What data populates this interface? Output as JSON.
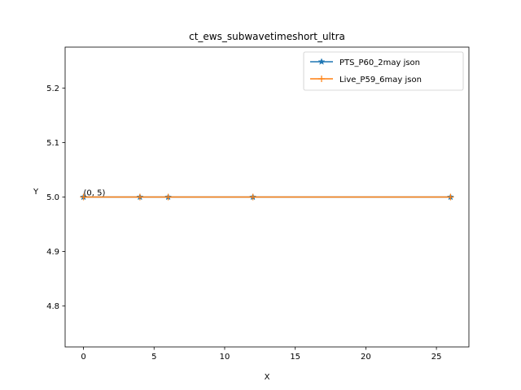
{
  "chart_data": {
    "type": "line",
    "title": "ct_ews_subwavetimeshort_ultra",
    "xlabel": "X",
    "ylabel": "Y",
    "xlim": [
      -1.3,
      27.3
    ],
    "ylim": [
      4.725,
      5.275
    ],
    "xticks": [
      0,
      5,
      10,
      15,
      20,
      25
    ],
    "yticks": [
      4.8,
      4.9,
      5.0,
      5.1,
      5.2
    ],
    "xtick_labels": [
      "0",
      "5",
      "10",
      "15",
      "20",
      "25"
    ],
    "ytick_labels": [
      "4.8",
      "4.9",
      "5.0",
      "5.1",
      "5.2"
    ],
    "grid": false,
    "legend_position": "top-right",
    "series": [
      {
        "name": "PTS_P60_2may json",
        "color": "#1f77b4",
        "marker": "star",
        "x": [
          0,
          4,
          6,
          12,
          26
        ],
        "y": [
          5,
          5,
          5,
          5,
          5
        ]
      },
      {
        "name": "Live_P59_6may json",
        "color": "#ff7f0e",
        "marker": "plus",
        "x": [
          0,
          4,
          6,
          12,
          26
        ],
        "y": [
          5,
          5,
          5,
          5,
          5
        ]
      }
    ],
    "annotations": [
      {
        "text": "(0, 5)",
        "x": 0,
        "y": 5
      }
    ]
  }
}
